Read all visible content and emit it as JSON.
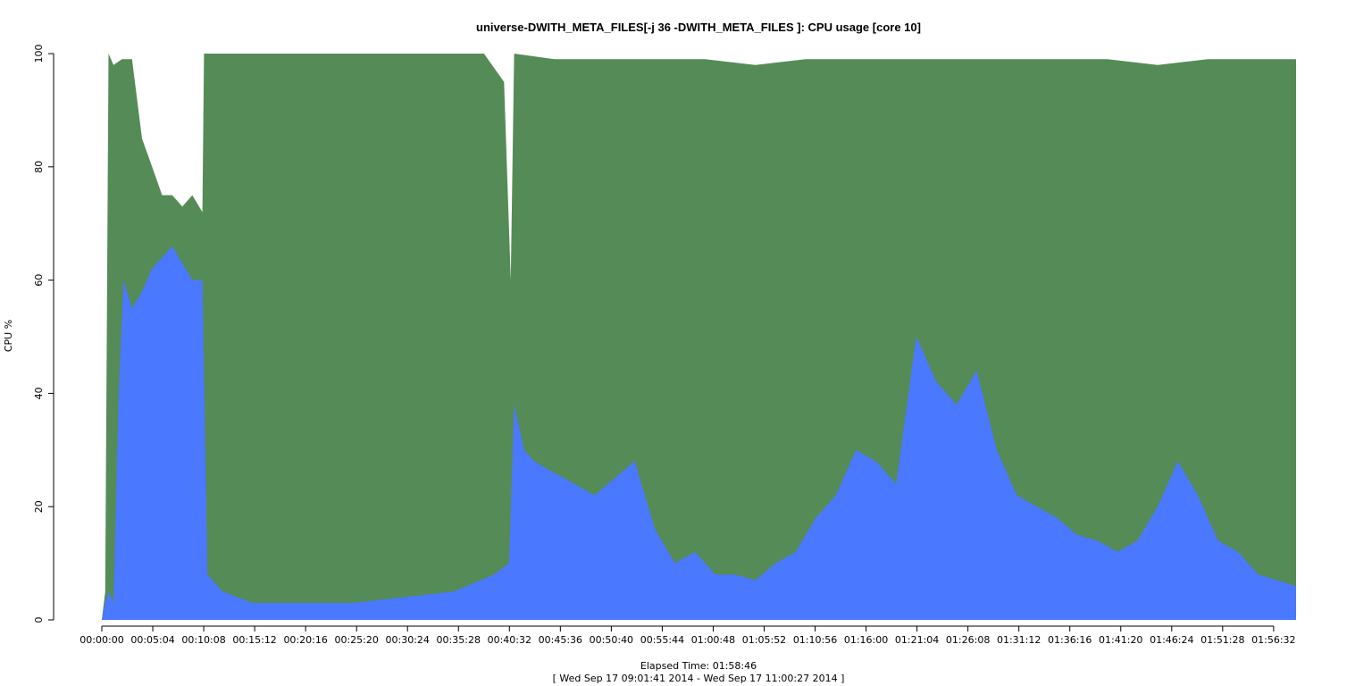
{
  "chart_data": {
    "type": "area",
    "title": "universe-DWITH_META_FILES[-j 36 -DWITH_META_FILES ]: CPU usage [core 10]",
    "ylabel": "CPU %",
    "xlabel": "Elapsed Time: 01:58:46",
    "subtitle": "[ Wed Sep 17 09:01:41 2014 - Wed Sep 17 11:00:27 2014 ]",
    "ylim": [
      0,
      100
    ],
    "yticks": [
      "0",
      "20",
      "40",
      "60",
      "80",
      "100"
    ],
    "xlim_seconds": [
      0,
      7126
    ],
    "xticks": [
      "00:00:00",
      "00:05:04",
      "00:10:08",
      "00:15:12",
      "00:20:16",
      "00:25:20",
      "00:30:24",
      "00:35:28",
      "00:40:32",
      "00:45:36",
      "00:50:40",
      "00:55:44",
      "01:00:48",
      "01:05:52",
      "01:10:56",
      "01:16:00",
      "01:21:04",
      "01:26:08",
      "01:31:12",
      "01:36:16",
      "01:41:20",
      "01:46:24",
      "01:51:28",
      "01:56:32"
    ],
    "colors": {
      "total": "#558B57",
      "user": "#4A78FF"
    },
    "series": [
      {
        "key": "total",
        "x": [
          "00:00:00",
          "00:00:20",
          "00:00:40",
          "00:01:10",
          "00:02:00",
          "00:03:00",
          "00:04:00",
          "00:05:00",
          "00:06:00",
          "00:07:00",
          "00:08:00",
          "00:09:00",
          "00:10:00",
          "00:10:10",
          "00:15:00",
          "00:20:00",
          "00:25:00",
          "00:30:00",
          "00:35:00",
          "00:38:00",
          "00:40:00",
          "00:40:40",
          "00:41:00",
          "00:45:00",
          "00:50:00",
          "00:55:00",
          "01:00:00",
          "01:05:00",
          "01:10:00",
          "01:15:00",
          "01:20:00",
          "01:25:00",
          "01:30:00",
          "01:35:00",
          "01:40:00",
          "01:45:00",
          "01:50:00",
          "01:55:00",
          "01:58:46"
        ],
        "values": [
          0,
          5,
          100,
          98,
          99,
          99,
          85,
          80,
          75,
          75,
          73,
          75,
          72,
          100,
          100,
          100,
          100,
          100,
          100,
          100,
          95,
          60,
          100,
          99,
          99,
          99,
          99,
          98,
          99,
          99,
          99,
          99,
          99,
          99,
          99,
          98,
          99,
          99,
          99
        ]
      },
      {
        "key": "user",
        "x": [
          "00:00:00",
          "00:00:20",
          "00:00:40",
          "00:01:10",
          "00:01:40",
          "00:02:10",
          "00:03:00",
          "00:04:00",
          "00:05:00",
          "00:06:00",
          "00:07:00",
          "00:08:00",
          "00:09:00",
          "00:10:00",
          "00:10:30",
          "00:12:00",
          "00:15:00",
          "00:20:00",
          "00:25:00",
          "00:30:00",
          "00:35:00",
          "00:39:00",
          "00:40:30",
          "00:41:00",
          "00:42:00",
          "00:43:00",
          "00:45:00",
          "00:47:00",
          "00:49:00",
          "00:51:00",
          "00:53:00",
          "00:55:00",
          "00:57:00",
          "00:59:00",
          "01:01:00",
          "01:03:00",
          "01:05:00",
          "01:07:00",
          "01:09:00",
          "01:11:00",
          "01:13:00",
          "01:15:00",
          "01:17:00",
          "01:19:00",
          "01:21:00",
          "01:23:00",
          "01:25:00",
          "01:27:00",
          "01:29:00",
          "01:31:00",
          "01:33:00",
          "01:35:00",
          "01:37:00",
          "01:39:00",
          "01:41:00",
          "01:43:00",
          "01:45:00",
          "01:47:00",
          "01:49:00",
          "01:51:00",
          "01:53:00",
          "01:55:00",
          "01:58:46"
        ],
        "values": [
          0,
          3,
          5,
          3,
          40,
          60,
          55,
          58,
          62,
          64,
          66,
          63,
          60,
          60,
          8,
          5,
          3,
          3,
          3,
          4,
          5,
          8,
          10,
          38,
          30,
          28,
          26,
          24,
          22,
          25,
          28,
          16,
          10,
          12,
          8,
          8,
          7,
          10,
          12,
          18,
          22,
          30,
          28,
          24,
          50,
          42,
          38,
          44,
          30,
          22,
          20,
          18,
          15,
          14,
          12,
          14,
          20,
          28,
          22,
          14,
          12,
          8,
          6
        ]
      }
    ]
  }
}
